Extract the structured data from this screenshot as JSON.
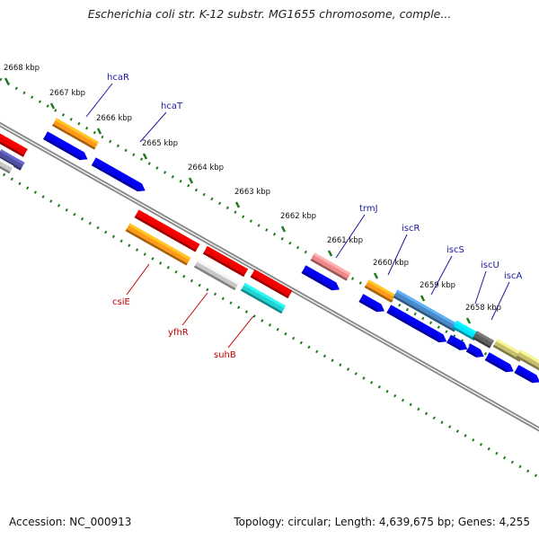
{
  "title": "Escherichia coli str. K-12 substr. MG1655 chromosome, comple...",
  "footer": {
    "accession": "Accession: NC_000913",
    "summary": "Topology: circular; Length: 4,639,675 bp; Genes: 4,255"
  },
  "ticks": [
    {
      "kbp": 2668,
      "label": "2668 kbp"
    },
    {
      "kbp": 2667,
      "label": "2667 kbp"
    },
    {
      "kbp": 2666,
      "label": "2666 kbp"
    },
    {
      "kbp": 2665,
      "label": "2665 kbp"
    },
    {
      "kbp": 2664,
      "label": "2664 kbp"
    },
    {
      "kbp": 2663,
      "label": "2663 kbp"
    },
    {
      "kbp": 2662,
      "label": "2662 kbp"
    },
    {
      "kbp": 2661,
      "label": "2661 kbp"
    },
    {
      "kbp": 2660,
      "label": "2660 kbp"
    },
    {
      "kbp": 2659,
      "label": "2659 kbp"
    },
    {
      "kbp": 2658,
      "label": "2658 kbp"
    }
  ],
  "labeled_genes": [
    {
      "name": "hcaR",
      "strand": "+",
      "color": "#1a1aa0"
    },
    {
      "name": "hcaT",
      "strand": "+",
      "color": "#1a1aa0"
    },
    {
      "name": "trmJ",
      "strand": "+",
      "color": "#1a1aa0"
    },
    {
      "name": "iscR",
      "strand": "+",
      "color": "#1a1aa0"
    },
    {
      "name": "iscS",
      "strand": "+",
      "color": "#1a1aa0"
    },
    {
      "name": "iscU",
      "strand": "+",
      "color": "#1a1aa0"
    },
    {
      "name": "iscA",
      "strand": "+",
      "color": "#1a1aa0"
    },
    {
      "name": "csiE",
      "strand": "-",
      "color": "#c00000"
    },
    {
      "name": "yfhR",
      "strand": "-",
      "color": "#c00000"
    },
    {
      "name": "suhB",
      "strand": "-",
      "color": "#c00000"
    }
  ],
  "colors": {
    "backbone": "#8a8a8a",
    "tick": "#1f7a1f",
    "cds_plus": "#0000ee",
    "cds_minus": "#ee0000",
    "orange": "#ff9a1a",
    "gray": "#c8c8c8",
    "cyan": "#22d3d3",
    "pink": "#f08a8a",
    "steel": "#4a88c8",
    "olive": "#c8c070"
  }
}
